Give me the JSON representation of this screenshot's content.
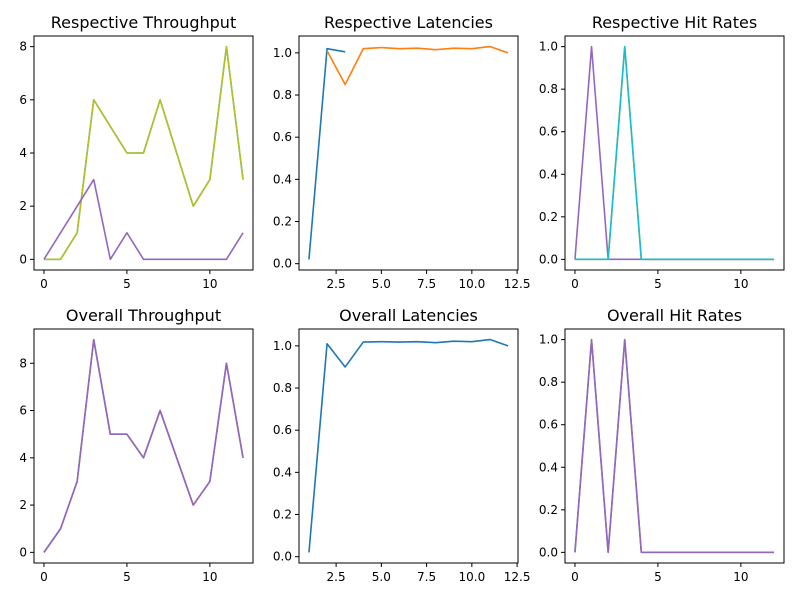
{
  "colors": {
    "blue": "#1f77b4",
    "orange": "#ff7f0e",
    "purple": "#9467bd",
    "cyan": "#17becf",
    "olive": "#bcbd22",
    "gray": "#7f7f7f"
  },
  "chart_data": [
    {
      "type": "line",
      "title": "Respective Throughput",
      "xlim": [
        -0.6,
        12.6
      ],
      "ylim": [
        -0.4,
        8.4
      ],
      "xticks": [
        0,
        5,
        10
      ],
      "yticks": [
        0,
        2,
        4,
        6,
        8
      ],
      "series": [
        {
          "color": "#17becf",
          "x": [
            0,
            1,
            2,
            3,
            4,
            5,
            6,
            7,
            8,
            9,
            10,
            11,
            12
          ],
          "y": [
            0,
            0,
            1,
            6,
            5,
            4,
            4,
            6,
            4,
            2,
            3,
            8,
            3
          ]
        },
        {
          "color": "#bcbd22",
          "x": [
            0,
            1,
            2,
            3,
            4,
            5,
            6,
            7,
            8,
            9,
            10,
            11,
            12
          ],
          "y": [
            0,
            0,
            1,
            6,
            5,
            4,
            4,
            6,
            4,
            2,
            3,
            8,
            3
          ]
        },
        {
          "color": "#9467bd",
          "x": [
            0,
            1,
            2,
            3,
            4,
            5,
            6,
            7,
            8,
            9,
            10,
            11,
            12
          ],
          "y": [
            0,
            1,
            2,
            3,
            0,
            1,
            0,
            0,
            0,
            0,
            0,
            0,
            1
          ]
        }
      ]
    },
    {
      "type": "line",
      "title": "Respective Latencies",
      "xlim": [
        0.45,
        12.55
      ],
      "ylim": [
        -0.03,
        1.08
      ],
      "xticks": [
        2.5,
        5.0,
        7.5,
        10.0,
        12.5
      ],
      "xtick_labels": [
        "2.5",
        "5.0",
        "7.5",
        "10.0",
        "12.5"
      ],
      "yticks": [
        0.0,
        0.2,
        0.4,
        0.6,
        0.8,
        1.0
      ],
      "ytick_labels": [
        "0.0",
        "0.2",
        "0.4",
        "0.6",
        "0.8",
        "1.0"
      ],
      "series": [
        {
          "color": "#1f77b4",
          "x": [
            1,
            2,
            3
          ],
          "y": [
            0.02,
            1.02,
            1.005
          ]
        },
        {
          "color": "#ff7f0e",
          "x": [
            2,
            3,
            4,
            5,
            6,
            7,
            8,
            9,
            10,
            11,
            12
          ],
          "y": [
            1.01,
            0.85,
            1.02,
            1.025,
            1.02,
            1.022,
            1.015,
            1.022,
            1.02,
            1.03,
            1.0
          ]
        }
      ]
    },
    {
      "type": "line",
      "title": "Respective Hit Rates",
      "xlim": [
        -0.6,
        12.6
      ],
      "ylim": [
        -0.05,
        1.05
      ],
      "xticks": [
        0,
        5,
        10
      ],
      "yticks": [
        0.0,
        0.2,
        0.4,
        0.6,
        0.8,
        1.0
      ],
      "ytick_labels": [
        "0.0",
        "0.2",
        "0.4",
        "0.6",
        "0.8",
        "1.0"
      ],
      "series": [
        {
          "color": "#9467bd",
          "x": [
            0,
            1,
            2,
            3,
            4,
            5,
            6,
            7,
            8,
            9,
            10,
            11,
            12
          ],
          "y": [
            0,
            1,
            0,
            0,
            0,
            0,
            0,
            0,
            0,
            0,
            0,
            0,
            0
          ]
        },
        {
          "color": "#bcbd22",
          "x": [
            0,
            1,
            2,
            3,
            4,
            5,
            6,
            7,
            8,
            9,
            10,
            11,
            12
          ],
          "y": [
            0,
            0,
            0,
            1,
            0,
            0,
            0,
            0,
            0,
            0,
            0,
            0,
            0
          ]
        },
        {
          "color": "#17becf",
          "x": [
            0,
            1,
            2,
            3,
            4,
            5,
            6,
            7,
            8,
            9,
            10,
            11,
            12
          ],
          "y": [
            0,
            0,
            0,
            1,
            0,
            0,
            0,
            0,
            0,
            0,
            0,
            0,
            0
          ]
        }
      ]
    },
    {
      "type": "line",
      "title": "Overall Throughput",
      "xlim": [
        -0.6,
        12.6
      ],
      "ylim": [
        -0.45,
        9.45
      ],
      "xticks": [
        0,
        5,
        10
      ],
      "yticks": [
        0,
        2,
        4,
        6,
        8
      ],
      "series": [
        {
          "color": "#7f7f7f",
          "x": [
            0,
            1,
            2,
            3,
            4,
            5,
            6,
            7,
            8,
            9,
            10,
            11,
            12
          ],
          "y": [
            0,
            1,
            3,
            9,
            5,
            5,
            4,
            6,
            4,
            2,
            3,
            8,
            4
          ]
        },
        {
          "color": "#9467bd",
          "x": [
            0,
            1,
            2,
            3,
            4,
            5,
            6,
            7,
            8,
            9,
            10,
            11,
            12
          ],
          "y": [
            0,
            1,
            3,
            9,
            5,
            5,
            4,
            6,
            4,
            2,
            3,
            8,
            4
          ]
        }
      ]
    },
    {
      "type": "line",
      "title": "Overall Latencies",
      "xlim": [
        0.45,
        12.55
      ],
      "ylim": [
        -0.03,
        1.08
      ],
      "xticks": [
        2.5,
        5.0,
        7.5,
        10.0,
        12.5
      ],
      "xtick_labels": [
        "2.5",
        "5.0",
        "7.5",
        "10.0",
        "12.5"
      ],
      "yticks": [
        0.0,
        0.2,
        0.4,
        0.6,
        0.8,
        1.0
      ],
      "ytick_labels": [
        "0.0",
        "0.2",
        "0.4",
        "0.6",
        "0.8",
        "1.0"
      ],
      "series": [
        {
          "color": "#1f77b4",
          "x": [
            1,
            2,
            3,
            4,
            5,
            6,
            7,
            8,
            9,
            10,
            11,
            12
          ],
          "y": [
            0.02,
            1.01,
            0.9,
            1.018,
            1.02,
            1.018,
            1.02,
            1.015,
            1.022,
            1.02,
            1.03,
            1.0
          ]
        }
      ]
    },
    {
      "type": "line",
      "title": "Overall Hit Rates",
      "xlim": [
        -0.6,
        12.6
      ],
      "ylim": [
        -0.05,
        1.05
      ],
      "xticks": [
        0,
        5,
        10
      ],
      "yticks": [
        0.0,
        0.2,
        0.4,
        0.6,
        0.8,
        1.0
      ],
      "ytick_labels": [
        "0.0",
        "0.2",
        "0.4",
        "0.6",
        "0.8",
        "1.0"
      ],
      "series": [
        {
          "color": "#7f7f7f",
          "x": [
            0,
            1,
            2,
            3,
            4,
            5,
            6,
            7,
            8,
            9,
            10,
            11,
            12
          ],
          "y": [
            0,
            1,
            0,
            1,
            0,
            0,
            0,
            0,
            0,
            0,
            0,
            0,
            0
          ]
        },
        {
          "color": "#9467bd",
          "x": [
            0,
            1,
            2,
            3,
            4,
            5,
            6,
            7,
            8,
            9,
            10,
            11,
            12
          ],
          "y": [
            0,
            1,
            0,
            1,
            0,
            0,
            0,
            0,
            0,
            0,
            0,
            0,
            0
          ]
        }
      ]
    }
  ]
}
